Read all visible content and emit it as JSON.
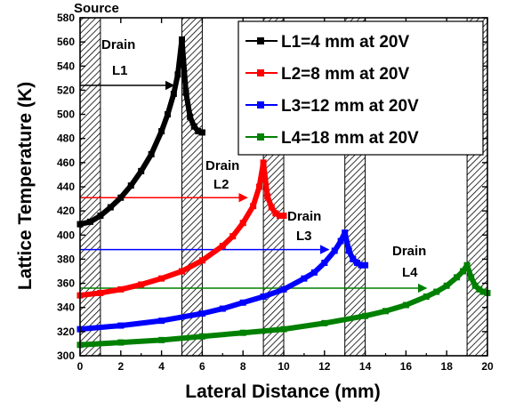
{
  "chart_data": {
    "type": "line",
    "xlabel": "Lateral Distance (mm)",
    "ylabel": "Lattice Temperature (K)",
    "xlim": [
      0,
      20
    ],
    "ylim": [
      300,
      580
    ],
    "x_ticks": [
      0,
      2,
      4,
      6,
      8,
      10,
      12,
      14,
      16,
      18,
      20
    ],
    "y_ticks": [
      300,
      320,
      340,
      360,
      380,
      400,
      420,
      440,
      460,
      480,
      500,
      520,
      540,
      560,
      580
    ],
    "grid": false,
    "legend_position": "top-right",
    "series": [
      {
        "name": "L1=4 mm at 20V",
        "color": "#000000",
        "x": [
          0,
          0.5,
          1,
          1.5,
          2,
          2.5,
          3,
          3.5,
          4,
          4.3,
          4.6,
          4.8,
          5.0,
          5.2,
          5.4,
          5.6,
          5.8,
          6.0
        ],
        "y": [
          409,
          411,
          416,
          423,
          431,
          441,
          453,
          467,
          486,
          500,
          517,
          533,
          562,
          518,
          498,
          490,
          486,
          485
        ]
      },
      {
        "name": "L2=8 mm at 20V",
        "color": "#ff0000",
        "x": [
          0,
          1,
          2,
          3,
          4,
          5,
          6,
          7,
          7.5,
          8,
          8.5,
          8.8,
          9.0,
          9.2,
          9.4,
          9.6,
          9.8,
          10.0
        ],
        "y": [
          350,
          352,
          355,
          359,
          364,
          370,
          379,
          391,
          399,
          410,
          424,
          440,
          460,
          432,
          423,
          418,
          416,
          416
        ]
      },
      {
        "name": "L3=12 mm at 20V",
        "color": "#0000ff",
        "x": [
          0,
          2,
          4,
          6,
          7,
          8,
          9,
          10,
          11,
          11.5,
          12,
          12.5,
          12.8,
          13.0,
          13.2,
          13.4,
          13.6,
          13.8,
          14.0
        ],
        "y": [
          322,
          325,
          329,
          335,
          339,
          344,
          349,
          355,
          364,
          369,
          377,
          387,
          395,
          402,
          387,
          380,
          377,
          375,
          375
        ]
      },
      {
        "name": "L4=18 mm at 20V",
        "color": "#008000",
        "x": [
          0,
          2,
          4,
          6,
          8,
          10,
          12,
          14,
          15,
          16,
          17,
          17.5,
          18,
          18.5,
          18.8,
          19.0,
          19.2,
          19.4,
          19.6,
          19.8,
          20.0
        ],
        "y": [
          309,
          311,
          313,
          316,
          319,
          322,
          327,
          333,
          337,
          342,
          349,
          353,
          358,
          365,
          370,
          375,
          365,
          358,
          355,
          353,
          352
        ]
      }
    ],
    "contact_regions": [
      [
        0,
        1
      ],
      [
        5,
        6
      ],
      [
        9,
        10
      ],
      [
        13,
        14
      ],
      [
        19,
        20
      ]
    ],
    "arrows": [
      {
        "x1": 0,
        "x2": 4.6,
        "y": 524,
        "color": "#000000"
      },
      {
        "x1": 0,
        "x2": 8.2,
        "y": 431,
        "color": "#ff0000"
      },
      {
        "x1": 0,
        "x2": 12.2,
        "y": 388,
        "color": "#0000ff"
      },
      {
        "x1": 0,
        "x2": 17.0,
        "y": 356,
        "color": "#008000"
      }
    ],
    "annotations": {
      "source": "Source",
      "drain1": "Drain",
      "l1": "L1",
      "drain2": "Drain",
      "l2": "L2",
      "drain3": "Drain",
      "l3": "L3",
      "drain4": "Drain",
      "l4": "L4"
    }
  }
}
